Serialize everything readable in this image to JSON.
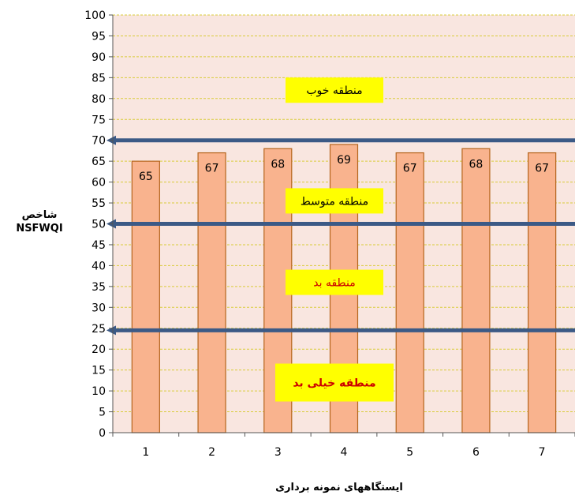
{
  "chart_data": {
    "type": "bar",
    "categories": [
      "1",
      "2",
      "3",
      "4",
      "5",
      "6",
      "7"
    ],
    "values": [
      65,
      67,
      68,
      69,
      67,
      68,
      67
    ],
    "ylabel_line1": "شاخص",
    "ylabel_line2": "NSFWQI",
    "xlabel": "ایستگاههای نمونه برداری",
    "ylim": [
      0,
      100
    ],
    "yticks": [
      0,
      5,
      10,
      15,
      20,
      25,
      30,
      35,
      40,
      45,
      50,
      55,
      60,
      65,
      70,
      75,
      80,
      85,
      90,
      95,
      100
    ],
    "grid": true,
    "threshold_lines": [
      70,
      50,
      24.5
    ],
    "zones": [
      {
        "label": "منطقه خوب",
        "y": 82,
        "color": "#000000",
        "bold": false
      },
      {
        "label": "منطقه متوسط",
        "y": 55.5,
        "color": "#000000",
        "bold": false
      },
      {
        "label": "منطقه بد",
        "y": 36,
        "color": "#cc0000",
        "bold": false
      },
      {
        "label": "منطقه خیلی بد",
        "y": 12,
        "color": "#cc0000",
        "bold": true
      }
    ],
    "colors": {
      "bar_fill": "#f9b38e",
      "bar_stroke": "#b5651d",
      "plot_bg": "#f9e6e0",
      "grid": "#d9cc3a",
      "threshold": "#3c5a86",
      "zone_box": "#ffff00"
    }
  }
}
